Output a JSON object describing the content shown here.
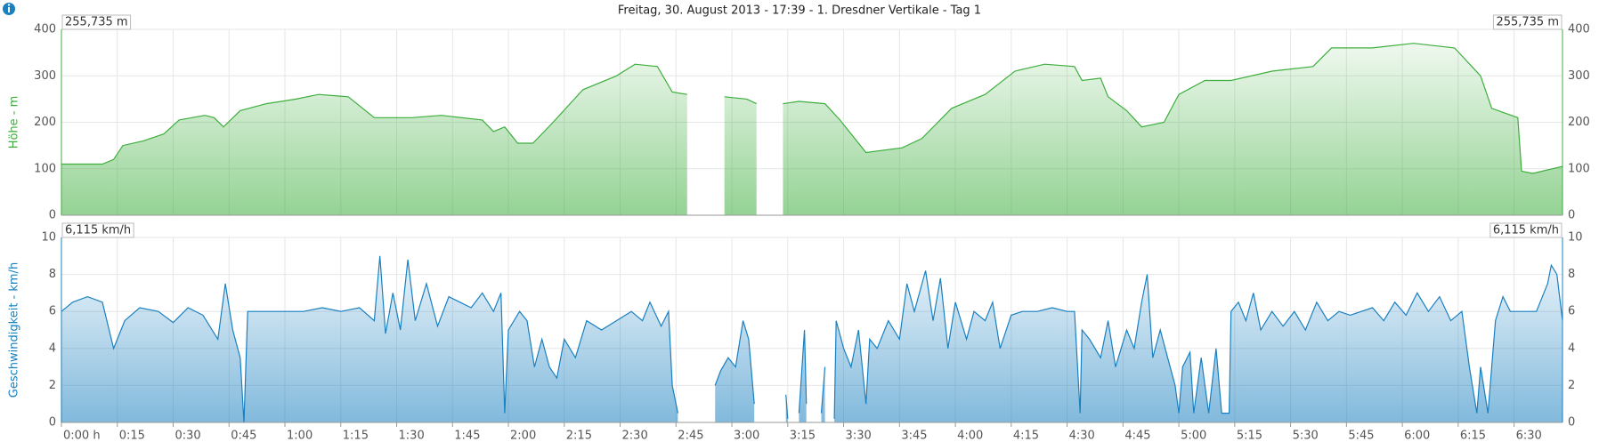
{
  "chart_data": [
    {
      "type": "area",
      "title": "Freitag, 30. August 2013 - 17:39 - 1. Dresdner Vertikale - Tag 1",
      "ylabel": "Höhe - m",
      "readout": "255,735 m",
      "xlim": [
        0,
        403
      ],
      "ylim": [
        0,
        400
      ],
      "yticks": [
        0,
        100,
        200,
        300,
        400
      ],
      "grid": true,
      "x": [
        0,
        11,
        14,
        16.5,
        22,
        27.5,
        31.6,
        38.5,
        41,
        43.5,
        48,
        55,
        63,
        69,
        77,
        84,
        94,
        102,
        113,
        116,
        119,
        122.5,
        126.6,
        132,
        140,
        149,
        154,
        160,
        164,
        168,
        169,
        178,
        184,
        186.6,
        187,
        193.7,
        198,
        205,
        209,
        216,
        225.7,
        231,
        239,
        248,
        256,
        264,
        272,
        274,
        279,
        281,
        286,
        290,
        296,
        300,
        307,
        314,
        325,
        336,
        341,
        352,
        363,
        374,
        381,
        384,
        391,
        392,
        395,
        403
      ],
      "series": [
        {
          "name": "Höhe",
          "color": "#3dae3d",
          "values": [
            110,
            110,
            120,
            150,
            160,
            175,
            205,
            215,
            210,
            190,
            225,
            240,
            250,
            260,
            255,
            210,
            210,
            215,
            205,
            180,
            190,
            155,
            155,
            200,
            270,
            300,
            325,
            320,
            265,
            260,
            null,
            255,
            250,
            240,
            null,
            240,
            245,
            240,
            205,
            135,
            145,
            165,
            230,
            260,
            310,
            325,
            320,
            290,
            295,
            255,
            225,
            190,
            200,
            260,
            290,
            290,
            310,
            320,
            360,
            360,
            370,
            360,
            300,
            230,
            210,
            95,
            90,
            105
          ]
        }
      ]
    },
    {
      "type": "area",
      "ylabel": "Geschwindigkeit - km/h",
      "readout": "6,115 km/h",
      "xlim": [
        0,
        403
      ],
      "ylim": [
        0,
        10
      ],
      "yticks": [
        0,
        2,
        4,
        6,
        8,
        10
      ],
      "grid": true,
      "xticks": [
        {
          "value": 0,
          "label": "0:00 h"
        },
        {
          "value": 15,
          "label": "0:15"
        },
        {
          "value": 30,
          "label": "0:30"
        },
        {
          "value": 45,
          "label": "0:45"
        },
        {
          "value": 60,
          "label": "1:00"
        },
        {
          "value": 75,
          "label": "1:15"
        },
        {
          "value": 90,
          "label": "1:30"
        },
        {
          "value": 105,
          "label": "1:45"
        },
        {
          "value": 120,
          "label": "2:00"
        },
        {
          "value": 135,
          "label": "2:15"
        },
        {
          "value": 150,
          "label": "2:30"
        },
        {
          "value": 165,
          "label": "2:45"
        },
        {
          "value": 180,
          "label": "3:00"
        },
        {
          "value": 195,
          "label": "3:15"
        },
        {
          "value": 210,
          "label": "3:30"
        },
        {
          "value": 225,
          "label": "3:45"
        },
        {
          "value": 240,
          "label": "4:00"
        },
        {
          "value": 255,
          "label": "4:15"
        },
        {
          "value": 270,
          "label": "4:30"
        },
        {
          "value": 285,
          "label": "4:45"
        },
        {
          "value": 300,
          "label": "5:00"
        },
        {
          "value": 315,
          "label": "5:15"
        },
        {
          "value": 330,
          "label": "5:30"
        },
        {
          "value": 345,
          "label": "5:45"
        },
        {
          "value": 360,
          "label": "6:00"
        },
        {
          "value": 375,
          "label": "6:15"
        },
        {
          "value": 390,
          "label": "6:30"
        }
      ],
      "x": [
        0,
        3,
        7,
        11,
        14,
        17,
        21,
        26,
        30,
        34,
        38,
        42,
        44,
        46,
        48,
        49,
        50,
        55,
        60,
        65,
        70,
        75,
        80,
        84,
        85.5,
        87,
        89,
        91,
        93,
        95,
        98,
        101,
        104,
        107,
        110,
        113,
        116,
        118,
        119,
        120,
        123,
        125,
        127,
        129,
        131,
        133,
        135,
        138,
        141,
        145,
        149,
        153,
        156,
        158,
        161,
        163,
        164,
        165.5,
        166,
        175.5,
        177,
        179,
        181,
        183,
        184.5,
        186,
        186.5,
        194.5,
        195,
        195.5,
        198,
        199.5,
        200,
        200.5,
        204,
        205,
        205.5,
        207.5,
        208,
        210,
        212,
        214,
        216,
        217,
        219,
        222,
        225,
        227,
        229,
        232,
        234,
        236,
        238,
        240,
        243,
        245,
        248,
        250,
        252,
        255,
        258,
        262,
        266,
        270,
        272,
        273.5,
        274,
        276,
        279,
        281,
        283,
        286,
        288,
        290,
        291.5,
        293,
        295,
        297,
        299,
        300,
        301,
        303,
        304,
        306,
        308,
        310,
        311.5,
        313.5,
        314,
        316,
        318,
        320,
        322,
        325,
        328,
        331,
        334,
        337,
        340,
        343,
        346,
        349,
        352,
        355,
        358,
        361,
        364,
        367,
        370,
        373,
        376,
        378,
        380,
        381,
        383,
        385,
        387,
        389,
        392,
        396,
        399,
        400,
        401.5,
        403
      ],
      "series": [
        {
          "name": "Geschwindigkeit",
          "color": "#1a80c0",
          "values": [
            6.0,
            6.5,
            6.8,
            6.5,
            4.0,
            5.5,
            6.2,
            6.0,
            5.4,
            6.2,
            5.8,
            4.5,
            7.5,
            5.0,
            3.5,
            0,
            6.0,
            6.0,
            6.0,
            6.0,
            6.2,
            6.0,
            6.2,
            5.5,
            9.0,
            4.8,
            7.0,
            5.0,
            8.8,
            5.5,
            7.5,
            5.2,
            6.8,
            6.5,
            6.2,
            7.0,
            6.0,
            7.0,
            0.5,
            5.0,
            6.0,
            5.5,
            3.0,
            4.5,
            3.0,
            2.4,
            4.5,
            3.5,
            5.5,
            5.0,
            5.5,
            6.0,
            5.5,
            6.5,
            5.2,
            6.0,
            2.0,
            0.5,
            null,
            2.0,
            2.8,
            3.5,
            3.0,
            5.5,
            4.5,
            1.0,
            null,
            1.5,
            0.2,
            null,
            0.5,
            5.0,
            1.0,
            null,
            0.5,
            3.0,
            null,
            0.2,
            5.5,
            4.0,
            3.0,
            5.0,
            1.0,
            4.5,
            4.0,
            5.5,
            4.5,
            7.5,
            6.0,
            8.2,
            5.5,
            7.8,
            4.0,
            6.5,
            4.5,
            6.0,
            5.5,
            6.5,
            4.0,
            5.8,
            6.0,
            6.0,
            6.2,
            6.0,
            6.0,
            0.5,
            5.0,
            4.5,
            3.5,
            5.5,
            3.0,
            5.0,
            4.0,
            6.5,
            8.0,
            3.5,
            5.0,
            3.5,
            2.0,
            0.5,
            3.0,
            3.8,
            0.5,
            3.5,
            0.5,
            4.0,
            0.5,
            0.5,
            6.0,
            6.5,
            5.5,
            7.0,
            5.0,
            6.0,
            5.2,
            6.0,
            5.0,
            6.5,
            5.5,
            6.0,
            5.8,
            6.0,
            6.2,
            5.5,
            6.5,
            5.8,
            7.0,
            6.0,
            6.8,
            5.5,
            6.0,
            3.0,
            0.5,
            3.0,
            0.5,
            5.5,
            6.8,
            6.0,
            6.0,
            6.0,
            7.5,
            8.5,
            8.0,
            5.5
          ]
        }
      ]
    }
  ]
}
